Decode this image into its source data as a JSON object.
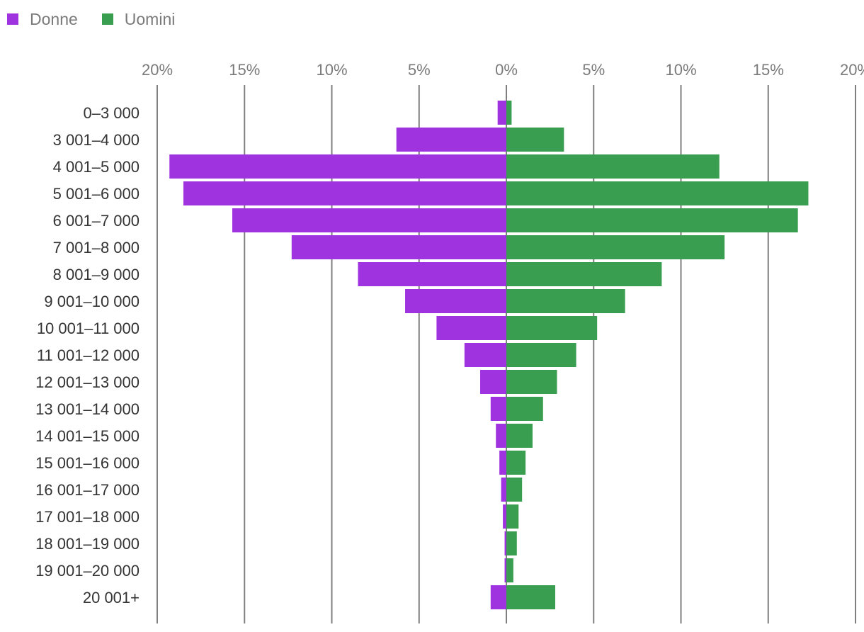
{
  "legend": {
    "women_label": "Donne",
    "men_label": "Uomini"
  },
  "colors": {
    "women": "#a033e0",
    "men": "#3a9e50",
    "grid": "#7f7f7f"
  },
  "chart_data": {
    "type": "bar",
    "orientation": "horizontal",
    "layout": "population-pyramid",
    "title": "",
    "xlabel": "",
    "ylabel": "",
    "xlim": [
      -20,
      20
    ],
    "x_ticks": [
      -20,
      -15,
      -10,
      -5,
      0,
      5,
      10,
      15,
      20
    ],
    "x_tick_labels": [
      "20%",
      "15%",
      "10%",
      "5%",
      "0%",
      "5%",
      "10%",
      "15%",
      "20%"
    ],
    "grid": true,
    "legend_position": "top-left",
    "categories": [
      "0–3 000",
      "3 001–4 000",
      "4 001–5 000",
      "5 001–6 000",
      "6 001–7 000",
      "7 001–8 000",
      "8 001–9 000",
      "9 001–10 000",
      "10 001–11 000",
      "11 001–12 000",
      "12 001–13 000",
      "13 001–14 000",
      "14 001–15 000",
      "15 001–16 000",
      "16 001–17 000",
      "17 001–18 000",
      "18 001–19 000",
      "19 001–20 000",
      "20 001+"
    ],
    "series": [
      {
        "name": "Donne",
        "side": "left",
        "values": [
          0.5,
          6.3,
          19.3,
          18.5,
          15.7,
          12.3,
          8.5,
          5.8,
          4.0,
          2.4,
          1.5,
          0.9,
          0.6,
          0.4,
          0.3,
          0.2,
          0.1,
          0.1,
          0.9
        ]
      },
      {
        "name": "Uomini",
        "side": "right",
        "values": [
          0.3,
          3.3,
          12.2,
          17.3,
          16.7,
          12.5,
          8.9,
          6.8,
          5.2,
          4.0,
          2.9,
          2.1,
          1.5,
          1.1,
          0.9,
          0.7,
          0.6,
          0.4,
          2.8
        ]
      }
    ]
  }
}
